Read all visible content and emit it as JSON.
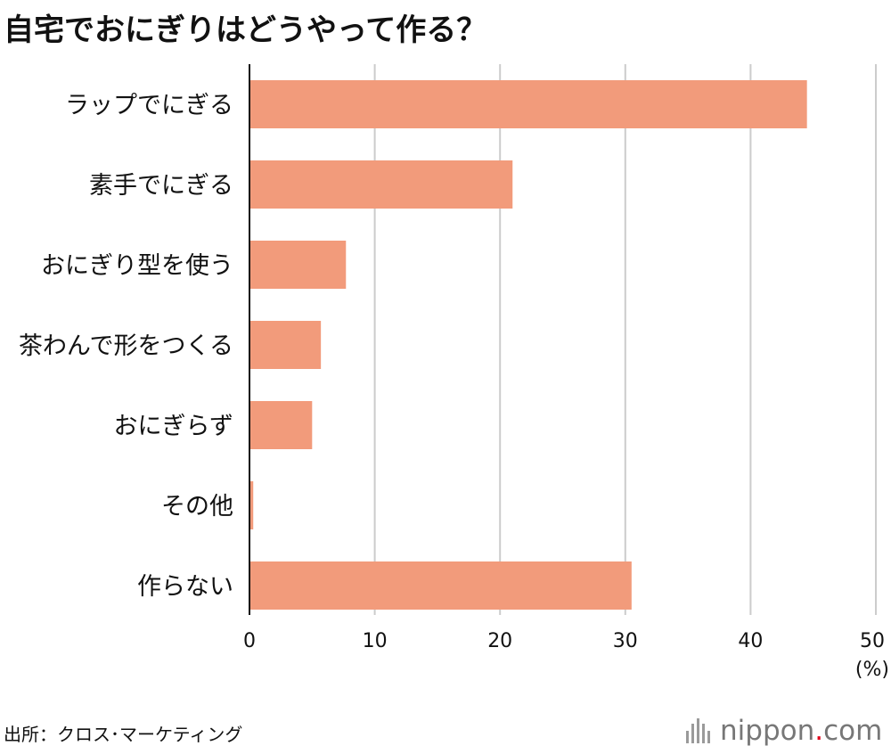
{
  "header": {
    "title": "自宅でおにぎりはどうやって作る？"
  },
  "footer": {
    "source": "出所：クロス･マーケティング",
    "logo_left": "nippon",
    "logo_dot": ".",
    "logo_right": "com"
  },
  "colors": {
    "bar": "#f29b7b",
    "grid": "#cccccc",
    "axis": "#111111"
  },
  "chart_data": {
    "type": "bar",
    "orientation": "horizontal",
    "title": "自宅でおにぎりはどうやって作る？",
    "categories": [
      "ラップでにぎる",
      "素手でにぎる",
      "おにぎり型を使う",
      "茶わんで形をつくる",
      "おにぎらず",
      "その他",
      "作らない"
    ],
    "values": [
      44.5,
      21.0,
      7.7,
      5.7,
      5.0,
      0.3,
      30.5
    ],
    "xlim": [
      0,
      50
    ],
    "xticks": [
      0,
      10,
      20,
      30,
      40,
      50
    ],
    "unit_label": "(%)",
    "grid": true
  }
}
